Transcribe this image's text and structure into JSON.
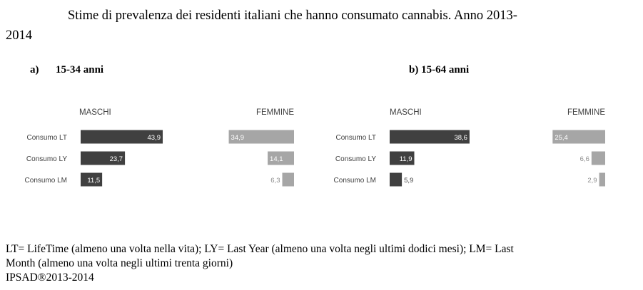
{
  "title": {
    "line1": "Stime di prevalenza dei residenti italiani che hanno consumato cannabis. Anno 2013-",
    "line2": "2014"
  },
  "panels": [
    {
      "letter": "a)",
      "label": "15-34 anni"
    },
    {
      "letter": "b)",
      "label": "15-64 anni"
    }
  ],
  "footnote": {
    "line1": "LT= LifeTime (almeno una volta nella vita); LY= Last Year (almeno una volta negli ultimi dodici mesi); LM= Last",
    "line2": "Month (almeno una volta negli ultimi trenta giorni)",
    "line3": "IPSAD®2013-2014"
  },
  "colors": {
    "male": "#404040",
    "female": "#a6a6a6",
    "text": "#404040"
  },
  "chart_data": [
    {
      "type": "bar",
      "orientation": "horizontal",
      "title": "15-34 anni",
      "categories": [
        "Consumo LT",
        "Consumo LY",
        "Consumo LM"
      ],
      "series": [
        {
          "name": "MASCHI",
          "values": [
            43.9,
            23.7,
            11.5
          ]
        },
        {
          "name": "FEMMINE",
          "values": [
            34.9,
            14.1,
            6.3
          ]
        }
      ]
    },
    {
      "type": "bar",
      "orientation": "horizontal",
      "title": "15-64 anni",
      "categories": [
        "Consumo LT",
        "Consumo LY",
        "Consumo LM"
      ],
      "series": [
        {
          "name": "MASCHI",
          "values": [
            38.6,
            11.9,
            5.9
          ]
        },
        {
          "name": "FEMMINE",
          "values": [
            25.4,
            6.6,
            2.9
          ]
        }
      ]
    }
  ]
}
